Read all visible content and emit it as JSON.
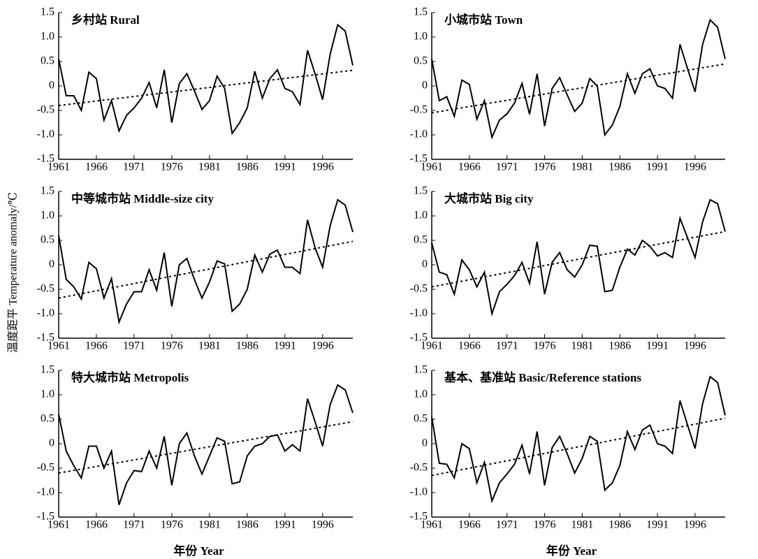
{
  "ylabel": "温度距平  Temperature anomaly/℃",
  "chart_data": [
    {
      "type": "line",
      "title": "乡村站  Rural",
      "color": "#000000",
      "x": [
        1961,
        1962,
        1963,
        1964,
        1965,
        1966,
        1967,
        1968,
        1969,
        1970,
        1971,
        1972,
        1973,
        1974,
        1975,
        1976,
        1977,
        1978,
        1979,
        1980,
        1981,
        1982,
        1983,
        1984,
        1985,
        1986,
        1987,
        1988,
        1989,
        1990,
        1991,
        1992,
        1993,
        1994,
        1995,
        1996,
        1997,
        1998,
        1999,
        2000
      ],
      "values": [
        0.55,
        -0.2,
        -0.2,
        -0.5,
        0.28,
        0.15,
        -0.7,
        -0.3,
        -0.92,
        -0.6,
        -0.45,
        -0.25,
        0.07,
        -0.45,
        0.33,
        -0.75,
        0.05,
        0.25,
        -0.1,
        -0.48,
        -0.3,
        0.2,
        -0.05,
        -0.97,
        -0.75,
        -0.45,
        0.3,
        -0.25,
        0.15,
        0.33,
        -0.05,
        -0.12,
        -0.38,
        0.73,
        0.25,
        -0.28,
        0.65,
        1.25,
        1.12,
        0.42
      ],
      "trend": {
        "x": [
          1961,
          2000
        ],
        "values": [
          -0.4,
          0.32
        ]
      },
      "xlim": [
        1961,
        2000
      ],
      "xticks": [
        1961,
        1966,
        1971,
        1976,
        1981,
        1986,
        1991,
        1996
      ],
      "ylim": [
        -1.5,
        1.5
      ],
      "yticks": [
        {
          "value": -1.5,
          "label": "-1.5"
        },
        {
          "value": -1,
          "label": "-1.0"
        },
        {
          "value": -0.5,
          "label": "-0.5"
        },
        0,
        0.5,
        {
          "value": 1,
          "label": "1.0"
        },
        1.5
      ]
    },
    {
      "type": "line",
      "title": "小城市站  Town",
      "color": "#000000",
      "x": [
        1961,
        1962,
        1963,
        1964,
        1965,
        1966,
        1967,
        1968,
        1969,
        1970,
        1971,
        1972,
        1973,
        1974,
        1975,
        1976,
        1977,
        1978,
        1979,
        1980,
        1981,
        1982,
        1983,
        1984,
        1985,
        1986,
        1987,
        1988,
        1989,
        1990,
        1991,
        1992,
        1993,
        1994,
        1995,
        1996,
        1997,
        1998,
        1999,
        2000
      ],
      "values": [
        0.55,
        -0.3,
        -0.22,
        -0.62,
        0.12,
        0.03,
        -0.68,
        -0.3,
        -1.05,
        -0.7,
        -0.57,
        -0.35,
        0.05,
        -0.58,
        0.25,
        -0.82,
        -0.05,
        0.17,
        -0.18,
        -0.52,
        -0.35,
        0.15,
        0.0,
        -1.0,
        -0.8,
        -0.42,
        0.25,
        -0.15,
        0.25,
        0.35,
        0.0,
        -0.05,
        -0.25,
        0.85,
        0.35,
        -0.12,
        0.85,
        1.35,
        1.2,
        0.55
      ],
      "trend": {
        "x": [
          1961,
          2000
        ],
        "values": [
          -0.55,
          0.45
        ]
      },
      "xlim": [
        1961,
        2000
      ],
      "xticks": [
        1961,
        1966,
        1971,
        1976,
        1981,
        1986,
        1991,
        1996
      ],
      "ylim": [
        -1.5,
        1.5
      ],
      "yticks": [
        {
          "value": -1.5,
          "label": "-1.5"
        },
        {
          "value": -1,
          "label": "-1.0"
        },
        {
          "value": -0.5,
          "label": "-0.5"
        },
        0,
        0.5,
        {
          "value": 1,
          "label": "1.0"
        },
        1.5
      ]
    },
    {
      "type": "line",
      "title": "中等城市站  Middle-size city",
      "color": "#000000",
      "x": [
        1961,
        1962,
        1963,
        1964,
        1965,
        1966,
        1967,
        1968,
        1969,
        1970,
        1971,
        1972,
        1973,
        1974,
        1975,
        1976,
        1977,
        1978,
        1979,
        1980,
        1981,
        1982,
        1983,
        1984,
        1985,
        1986,
        1987,
        1988,
        1989,
        1990,
        1991,
        1992,
        1993,
        1994,
        1995,
        1996,
        1997,
        1998,
        1999,
        2000
      ],
      "values": [
        0.6,
        -0.3,
        -0.45,
        -0.7,
        0.05,
        -0.08,
        -0.68,
        -0.28,
        -1.17,
        -0.8,
        -0.55,
        -0.55,
        -0.1,
        -0.52,
        0.25,
        -0.85,
        0.0,
        0.13,
        -0.3,
        -0.68,
        -0.35,
        0.08,
        0.02,
        -0.95,
        -0.8,
        -0.5,
        0.2,
        -0.15,
        0.22,
        0.3,
        -0.05,
        -0.05,
        -0.18,
        0.92,
        0.35,
        -0.05,
        0.8,
        1.33,
        1.22,
        0.67
      ],
      "trend": {
        "x": [
          1961,
          2000
        ],
        "values": [
          -0.68,
          0.48
        ]
      },
      "xlim": [
        1961,
        2000
      ],
      "xticks": [
        1961,
        1966,
        1971,
        1976,
        1981,
        1986,
        1991,
        1996
      ],
      "ylim": [
        -1.5,
        1.5
      ],
      "yticks": [
        {
          "value": -1.5,
          "label": "-1.5"
        },
        {
          "value": -1,
          "label": "-1.0"
        },
        {
          "value": -0.5,
          "label": "-0.5"
        },
        0,
        0.5,
        {
          "value": 1,
          "label": "1.0"
        },
        1.5
      ]
    },
    {
      "type": "line",
      "title": "大城市站  Big city",
      "color": "#000000",
      "x": [
        1961,
        1962,
        1963,
        1964,
        1965,
        1966,
        1967,
        1968,
        1969,
        1970,
        1971,
        1972,
        1973,
        1974,
        1975,
        1976,
        1977,
        1978,
        1979,
        1980,
        1981,
        1982,
        1983,
        1984,
        1985,
        1986,
        1987,
        1988,
        1989,
        1990,
        1991,
        1992,
        1993,
        1994,
        1995,
        1996,
        1997,
        1998,
        1999,
        2000
      ],
      "values": [
        0.45,
        -0.15,
        -0.2,
        -0.6,
        0.1,
        -0.1,
        -0.45,
        -0.15,
        -1.0,
        -0.55,
        -0.4,
        -0.22,
        0.05,
        -0.38,
        0.47,
        -0.6,
        0.05,
        0.25,
        -0.1,
        -0.25,
        0.0,
        0.4,
        0.38,
        -0.55,
        -0.52,
        -0.05,
        0.32,
        0.2,
        0.5,
        0.38,
        0.18,
        0.25,
        0.15,
        0.95,
        0.55,
        0.15,
        0.88,
        1.33,
        1.25,
        0.68
      ],
      "trend": {
        "x": [
          1961,
          2000
        ],
        "values": [
          -0.45,
          0.68
        ]
      },
      "xlim": [
        1961,
        2000
      ],
      "xticks": [
        1961,
        1966,
        1971,
        1976,
        1981,
        1986,
        1991,
        1996
      ],
      "ylim": [
        -1.5,
        1.5
      ],
      "yticks": [
        {
          "value": -1.5,
          "label": "-1.5"
        },
        {
          "value": -1,
          "label": "-1.0"
        },
        {
          "value": -0.5,
          "label": "-0.5"
        },
        0,
        0.5,
        {
          "value": 1,
          "label": "1.0"
        },
        1.5
      ]
    },
    {
      "type": "line",
      "title": "特大城市站  Metropolis",
      "color": "#000000",
      "xlabel": "年份  Year",
      "x": [
        1961,
        1962,
        1963,
        1964,
        1965,
        1966,
        1967,
        1968,
        1969,
        1970,
        1971,
        1972,
        1973,
        1974,
        1975,
        1976,
        1977,
        1978,
        1979,
        1980,
        1981,
        1982,
        1983,
        1984,
        1985,
        1986,
        1987,
        1988,
        1989,
        1990,
        1991,
        1992,
        1993,
        1994,
        1995,
        1996,
        1997,
        1998,
        1999,
        2000
      ],
      "values": [
        0.6,
        -0.15,
        -0.45,
        -0.7,
        -0.05,
        -0.05,
        -0.5,
        -0.15,
        -1.25,
        -0.8,
        -0.55,
        -0.57,
        -0.15,
        -0.5,
        0.15,
        -0.85,
        0.0,
        0.22,
        -0.25,
        -0.62,
        -0.25,
        0.12,
        0.05,
        -0.82,
        -0.78,
        -0.25,
        -0.05,
        0.0,
        0.15,
        0.18,
        -0.15,
        -0.02,
        -0.15,
        0.92,
        0.45,
        -0.05,
        0.8,
        1.2,
        1.1,
        0.63
      ],
      "trend": {
        "x": [
          1961,
          2000
        ],
        "values": [
          -0.6,
          0.45
        ]
      },
      "xlim": [
        1961,
        2000
      ],
      "xticks": [
        1961,
        1966,
        1971,
        1976,
        1981,
        1986,
        1991,
        1996
      ],
      "ylim": [
        -1.5,
        1.5
      ],
      "yticks": [
        {
          "value": -1.5,
          "label": "-1.5"
        },
        {
          "value": -1,
          "label": "-1.0"
        },
        {
          "value": -0.5,
          "label": "-0.5"
        },
        0,
        0.5,
        {
          "value": 1,
          "label": "1.0"
        },
        1.5
      ]
    },
    {
      "type": "line",
      "title": "基本、基准站  Basic/Reference stations",
      "color": "#000000",
      "xlabel": "年份  Year",
      "x": [
        1961,
        1962,
        1963,
        1964,
        1965,
        1966,
        1967,
        1968,
        1969,
        1970,
        1971,
        1972,
        1973,
        1974,
        1975,
        1976,
        1977,
        1978,
        1979,
        1980,
        1981,
        1982,
        1983,
        1984,
        1985,
        1986,
        1987,
        1988,
        1989,
        1990,
        1991,
        1992,
        1993,
        1994,
        1995,
        1996,
        1997,
        1998,
        1999,
        2000
      ],
      "values": [
        0.55,
        -0.4,
        -0.42,
        -0.7,
        0.0,
        -0.1,
        -0.8,
        -0.38,
        -1.17,
        -0.8,
        -0.62,
        -0.42,
        -0.03,
        -0.62,
        0.25,
        -0.85,
        -0.08,
        0.15,
        -0.2,
        -0.6,
        -0.3,
        0.15,
        0.05,
        -0.95,
        -0.8,
        -0.45,
        0.25,
        -0.12,
        0.28,
        0.38,
        0.0,
        -0.05,
        -0.2,
        0.88,
        0.38,
        -0.1,
        0.82,
        1.37,
        1.25,
        0.58
      ],
      "trend": {
        "x": [
          1961,
          2000
        ],
        "values": [
          -0.65,
          0.52
        ]
      },
      "xlim": [
        1961,
        2000
      ],
      "xticks": [
        1961,
        1966,
        1971,
        1976,
        1981,
        1986,
        1991,
        1996
      ],
      "ylim": [
        -1.5,
        1.5
      ],
      "yticks": [
        {
          "value": -1.5,
          "label": "-1.5"
        },
        {
          "value": -1,
          "label": "-1.0"
        },
        {
          "value": -0.5,
          "label": "-0.5"
        },
        0,
        0.5,
        {
          "value": 1,
          "label": "1.0"
        },
        1.5
      ]
    }
  ]
}
